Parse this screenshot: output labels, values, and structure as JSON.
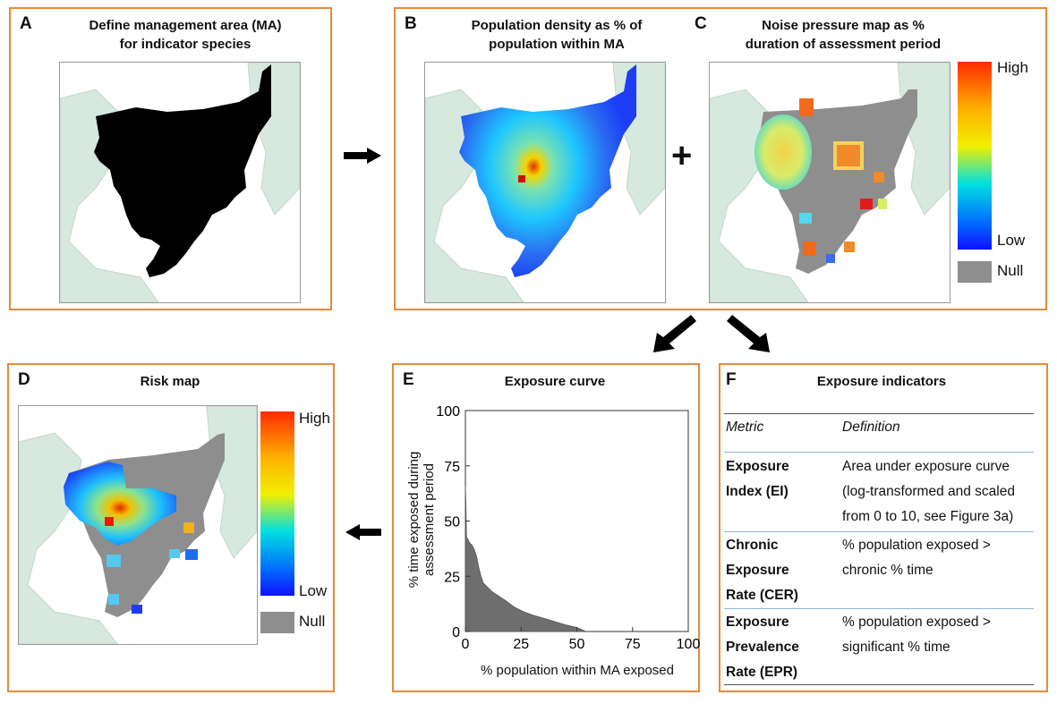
{
  "panels": {
    "A": {
      "letter": "A",
      "title_line1": "Define management area (MA)",
      "title_line2": "for indicator species"
    },
    "B": {
      "letter": "B",
      "title_line1": "Population density as % of",
      "title_line2": "population within MA"
    },
    "C": {
      "letter": "C",
      "title_line1": "Noise pressure map as %",
      "title_line2": "duration of assessment period"
    },
    "D": {
      "letter": "D",
      "title": "Risk map"
    },
    "E": {
      "letter": "E",
      "title": "Exposure curve"
    },
    "F": {
      "letter": "F",
      "title": "Exposure indicators"
    }
  },
  "plus_sign": "+",
  "legend": {
    "high": "High",
    "low": "Low",
    "null": "Null"
  },
  "colors": {
    "frame": "#E8893A",
    "land": "#d7e8df",
    "management_area": "#000000",
    "null": "#8e8e8e",
    "curve_fill": "#6e6e6e"
  },
  "indicators": {
    "header_metric": "Metric",
    "header_definition": "Definition",
    "rows": [
      {
        "metric": [
          "Exposure",
          "Index (EI)"
        ],
        "definition": [
          "Area under exposure curve",
          "(log-transformed and scaled",
          "from 0 to 10, see Figure 3a)"
        ]
      },
      {
        "metric": [
          "Chronic",
          "Exposure",
          "Rate (CER)"
        ],
        "definition": [
          "% population exposed >",
          "chronic % time"
        ]
      },
      {
        "metric": [
          "Exposure",
          "Prevalence",
          "Rate (EPR)"
        ],
        "definition": [
          "% population exposed >",
          "significant % time"
        ]
      }
    ]
  },
  "chart_data": {
    "type": "area",
    "title": "Exposure curve",
    "xlabel": "% population within MA exposed",
    "ylabel_line1": "% time exposed during",
    "ylabel_line2": "assessment period",
    "xlim": [
      0,
      100
    ],
    "ylim": [
      0,
      100
    ],
    "x_ticks": [
      0,
      25,
      50,
      75,
      100
    ],
    "y_ticks": [
      0,
      25,
      50,
      75,
      100
    ],
    "x": [
      0,
      0.3,
      0.5,
      1,
      1.5,
      2,
      3,
      4,
      5,
      6,
      7,
      8,
      10,
      12,
      15,
      18,
      22,
      26,
      30,
      35,
      40,
      45,
      50,
      52,
      54
    ],
    "y": [
      66,
      55,
      43,
      42,
      41,
      40,
      39,
      37,
      34,
      29,
      25,
      22,
      20,
      18,
      16,
      14,
      11,
      9,
      7.5,
      6,
      4.5,
      3,
      1.8,
      1,
      0
    ]
  }
}
